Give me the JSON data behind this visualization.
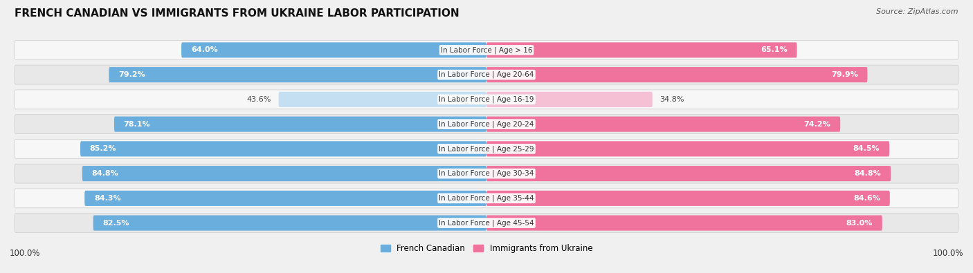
{
  "title": "French Canadian vs Immigrants from Ukraine Labor Participation",
  "title_display": "FRENCH CANADIAN VS IMMIGRANTS FROM UKRAINE LABOR PARTICIPATION",
  "source": "Source: ZipAtlas.com",
  "categories": [
    "In Labor Force | Age > 16",
    "In Labor Force | Age 20-64",
    "In Labor Force | Age 16-19",
    "In Labor Force | Age 20-24",
    "In Labor Force | Age 25-29",
    "In Labor Force | Age 30-34",
    "In Labor Force | Age 35-44",
    "In Labor Force | Age 45-54"
  ],
  "french_canadian": [
    64.0,
    79.2,
    43.6,
    78.1,
    85.2,
    84.8,
    84.3,
    82.5
  ],
  "immigrants_ukraine": [
    65.1,
    79.9,
    34.8,
    74.2,
    84.5,
    84.8,
    84.6,
    83.0
  ],
  "french_color_full": "#6aaede",
  "french_color_light": "#c5dff2",
  "ukraine_color_full": "#f0739e",
  "ukraine_color_light": "#f5c0d4",
  "bg_color": "#f0f0f0",
  "row_bg_light": "#f7f7f7",
  "row_bg_dark": "#e8e8e8",
  "title_fontsize": 11,
  "source_fontsize": 8,
  "value_fontsize": 8,
  "cat_fontsize": 7.5,
  "legend_fontsize": 8.5,
  "x_axis_label_left": "100.0%",
  "x_axis_label_right": "100.0%"
}
